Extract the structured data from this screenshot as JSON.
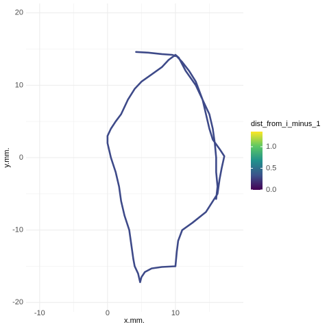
{
  "chart_data": {
    "type": "path",
    "xlabel": "x.mm.",
    "ylabel": "y.mm.",
    "x": [
      4.2,
      6,
      8,
      9.5,
      10.2,
      11,
      12,
      13,
      14,
      14.5,
      15,
      15.5,
      16.5,
      17.2,
      16.8,
      16.5,
      16.2,
      14.5,
      12.5,
      11,
      10.4,
      10.2,
      10,
      8,
      6.5,
      5.5,
      5,
      4.8,
      4.5,
      4,
      3.8,
      3.5,
      3.2,
      2.5,
      2,
      1.7,
      1.2,
      0.5,
      0,
      0,
      0.5,
      1.2,
      2,
      2.5,
      3,
      4,
      5,
      6.5,
      8,
      9,
      10,
      10.5,
      11.5,
      13,
      14,
      15,
      15.5,
      15.8,
      16,
      16,
      16.2,
      16
    ],
    "y": [
      14.6,
      14.5,
      14.3,
      14.2,
      14,
      13.2,
      12,
      10.5,
      8,
      6,
      4,
      2.5,
      1.2,
      0.2,
      -1.5,
      -3,
      -5,
      -7.5,
      -9,
      -10,
      -11.5,
      -13,
      -15,
      -15.1,
      -15.3,
      -15.8,
      -16.5,
      -17.2,
      -16,
      -15,
      -14,
      -12,
      -10,
      -8,
      -6,
      -4,
      -2,
      0,
      2,
      3,
      4,
      5,
      6,
      7,
      8,
      9.5,
      10.5,
      11.5,
      12.5,
      13.5,
      14.2,
      13.8,
      12,
      10,
      8,
      6,
      4,
      2,
      0,
      -2,
      -4,
      -5.7
    ],
    "color": "#3e4a89",
    "xlim": [
      -12,
      20
    ],
    "ylim": [
      -21.3,
      21.3
    ],
    "xticks": [
      -10,
      0,
      10
    ],
    "yticks": [
      -20,
      -10,
      0,
      10,
      20
    ],
    "x_minor_grid": [
      -5,
      5,
      15
    ],
    "y_minor_grid": [
      -15,
      -5,
      5,
      15
    ],
    "colorbar": {
      "title": "dist_from_i_minus_1",
      "lim": [
        0,
        1.35
      ],
      "ticks": [
        {
          "value": 0,
          "label": "0.0"
        },
        0.5,
        {
          "value": 1,
          "label": "1.0"
        }
      ],
      "colors": [
        "#440154",
        "#3b528b",
        "#21908c",
        "#5dc863",
        "#fde725"
      ]
    }
  }
}
